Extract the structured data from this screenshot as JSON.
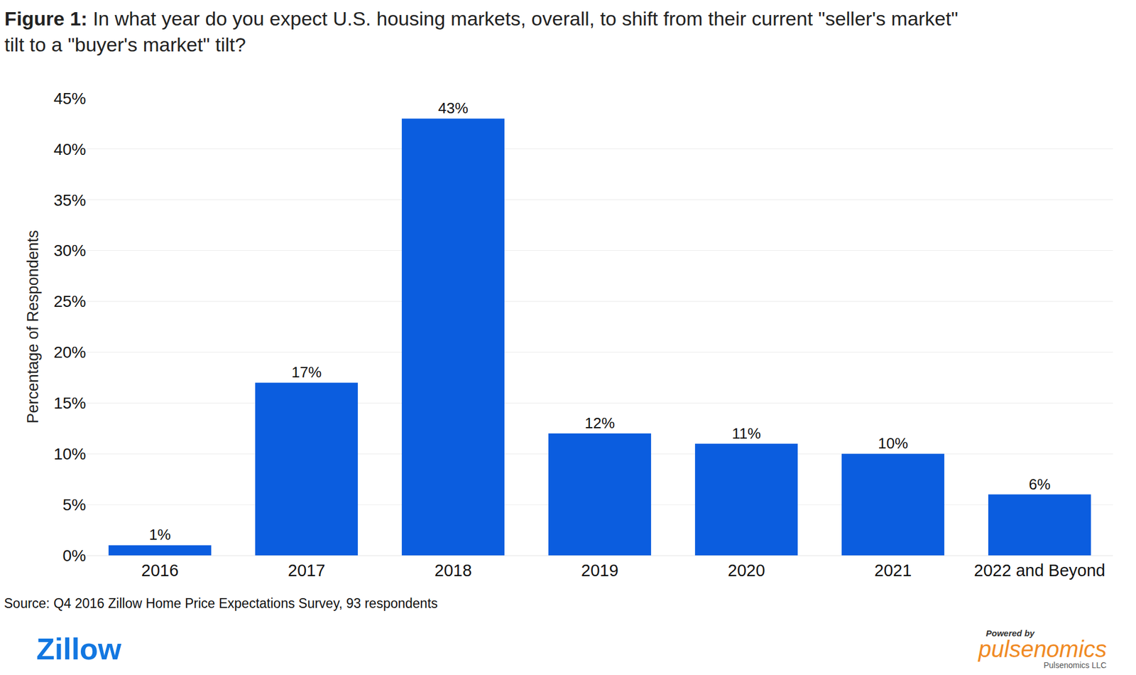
{
  "chart_data": {
    "type": "bar",
    "title": "Figure 1: In what year do you expect U.S. housing markets, overall, to shift from their current \"seller's market\" tilt to a \"buyer's market\" tilt?",
    "y_label": "Percentage of Respondents",
    "categories": [
      "2016",
      "2017",
      "2018",
      "2019",
      "2020",
      "2021",
      "2022 and Beyond"
    ],
    "values": [
      1,
      17,
      43,
      12,
      11,
      10,
      6
    ],
    "value_labels": [
      "1%",
      "17%",
      "43%",
      "12%",
      "11%",
      "10%",
      "6%"
    ],
    "color": "#0b5ddf",
    "data_labels": true,
    "ylim": [
      0,
      45
    ],
    "yticks": [
      {
        "value": 0,
        "label": "0%"
      },
      {
        "value": 5,
        "label": "5%"
      },
      {
        "value": 10,
        "label": "10%"
      },
      {
        "value": 15,
        "label": "15%"
      },
      {
        "value": 20,
        "label": "20%"
      },
      {
        "value": 25,
        "label": "25%"
      },
      {
        "value": 30,
        "label": "30%"
      },
      {
        "value": 35,
        "label": "35%"
      },
      {
        "value": 40,
        "label": "40%"
      },
      {
        "value": 45,
        "label": "45%"
      }
    ],
    "grid": true,
    "source": "Source: Q4 2016 Zillow Home Price Expectations Survey, 93 respondents",
    "logo_left": "Zillow",
    "logo_right": [
      "Powered by",
      "pulsenomics",
      "Pulsenomics LLC"
    ]
  }
}
